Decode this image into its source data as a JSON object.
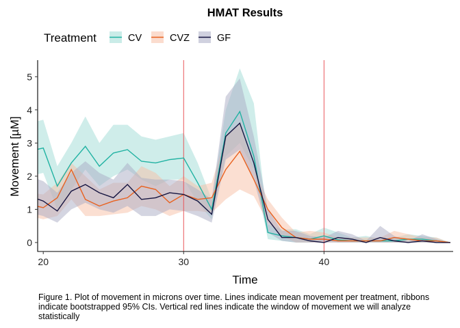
{
  "chart_data": {
    "type": "line",
    "title": "HMAT Results",
    "xlabel": "Time",
    "ylabel": "Movement [µM]",
    "legend_title": "Treatment",
    "legend_position": "top",
    "xlim": [
      19.6,
      49.2
    ],
    "ylim": [
      -0.27,
      5.5
    ],
    "xticks": [
      20,
      30,
      40
    ],
    "yticks": [
      0,
      1,
      2,
      3,
      4,
      5
    ],
    "grid": false,
    "vlines": [
      30,
      40
    ],
    "vline_color": "#E8555A",
    "x": [
      19,
      20,
      21,
      22,
      23,
      24,
      25,
      26,
      27,
      28,
      29,
      30,
      31,
      32,
      33,
      34,
      35,
      36,
      37,
      38,
      39,
      40,
      41,
      42,
      43,
      44,
      45,
      46,
      47,
      48,
      49
    ],
    "series": [
      {
        "name": "CV",
        "color": "#20B2A2",
        "ribbon_color": "#9FDCD6",
        "values": [
          2.75,
          2.85,
          1.7,
          2.4,
          2.9,
          2.3,
          2.7,
          2.8,
          2.45,
          2.4,
          2.5,
          2.55,
          1.8,
          1.0,
          3.3,
          3.95,
          2.6,
          0.3,
          0.2,
          0.15,
          0.1,
          0.2,
          0.08,
          0.05,
          0.05,
          0.05,
          0.05,
          0.1,
          0.1,
          0.05,
          0.0
        ],
        "lower": [
          2.0,
          2.1,
          1.0,
          1.6,
          2.2,
          1.7,
          2.0,
          2.2,
          1.9,
          1.7,
          1.9,
          1.9,
          1.2,
          0.7,
          2.6,
          3.0,
          2.2,
          0.1,
          0.05,
          0.0,
          0.0,
          0.05,
          0.0,
          0.0,
          0.0,
          0.0,
          0.0,
          0.0,
          0.0,
          0.0,
          0.0
        ],
        "upper": [
          3.6,
          3.7,
          2.3,
          3.0,
          3.8,
          3.0,
          3.55,
          3.55,
          3.2,
          3.1,
          3.2,
          3.3,
          2.4,
          1.3,
          4.0,
          5.25,
          4.2,
          0.55,
          0.4,
          0.4,
          0.25,
          0.45,
          0.3,
          0.15,
          0.2,
          0.1,
          0.15,
          0.25,
          0.2,
          0.15,
          0.0
        ]
      },
      {
        "name": "CVZ",
        "color": "#E8611F",
        "ribbon_color": "#F8BFA6",
        "values": [
          1.15,
          1.05,
          1.35,
          2.2,
          1.3,
          1.1,
          1.25,
          1.35,
          1.7,
          1.6,
          1.2,
          1.45,
          1.3,
          1.35,
          2.2,
          2.75,
          1.9,
          1.0,
          0.45,
          0.15,
          0.1,
          0.1,
          0.05,
          0.05,
          0.05,
          0.05,
          0.15,
          0.1,
          0.05,
          0.05,
          0.0
        ],
        "lower": [
          0.8,
          0.7,
          0.8,
          1.3,
          0.8,
          0.8,
          0.85,
          0.9,
          1.1,
          1.0,
          0.8,
          0.95,
          0.95,
          0.9,
          1.3,
          1.6,
          1.4,
          0.6,
          0.2,
          0.0,
          0.0,
          0.0,
          0.0,
          0.0,
          0.0,
          0.0,
          0.0,
          0.0,
          0.0,
          0.0,
          0.0
        ],
        "upper": [
          1.5,
          1.45,
          1.8,
          2.4,
          2.0,
          1.6,
          1.8,
          1.8,
          2.3,
          2.1,
          1.7,
          2.0,
          1.7,
          1.8,
          3.2,
          3.6,
          2.2,
          1.3,
          0.75,
          0.3,
          0.35,
          0.3,
          0.15,
          0.15,
          0.15,
          0.15,
          0.35,
          0.25,
          0.15,
          0.15,
          0.0
        ]
      },
      {
        "name": "GF",
        "color": "#14133F",
        "ribbon_color": "#A9ABC4",
        "values": [
          1.4,
          1.25,
          0.95,
          1.55,
          1.75,
          1.5,
          1.35,
          1.75,
          1.3,
          1.35,
          1.5,
          1.45,
          1.25,
          0.85,
          3.2,
          3.6,
          2.4,
          0.7,
          0.15,
          0.15,
          0.05,
          0.0,
          0.15,
          0.1,
          0.0,
          0.15,
          0.05,
          0.0,
          0.05,
          0.0,
          0.0
        ],
        "lower": [
          0.9,
          0.8,
          0.6,
          1.0,
          1.2,
          1.0,
          0.9,
          1.1,
          0.8,
          0.8,
          1.0,
          0.95,
          0.8,
          0.6,
          2.5,
          2.8,
          1.9,
          0.3,
          0.05,
          0.0,
          0.0,
          0.0,
          0.0,
          0.0,
          0.0,
          0.0,
          0.0,
          0.0,
          0.0,
          0.0,
          0.0
        ],
        "upper": [
          2.0,
          1.85,
          1.5,
          2.1,
          2.45,
          2.1,
          1.9,
          2.4,
          1.95,
          1.9,
          1.9,
          1.85,
          1.6,
          1.3,
          4.4,
          4.95,
          3.2,
          1.0,
          0.35,
          0.35,
          0.2,
          0.15,
          0.35,
          0.25,
          0.05,
          0.5,
          0.2,
          0.05,
          0.25,
          0.1,
          0.0
        ]
      }
    ]
  },
  "caption": "Figure 1. Plot of movement in microns over time. Lines indicate mean movement per treatment, ribbons indicate bootstrapped 95% CIs. Vertical red lines indicate the window of movement we will analyze statistically"
}
